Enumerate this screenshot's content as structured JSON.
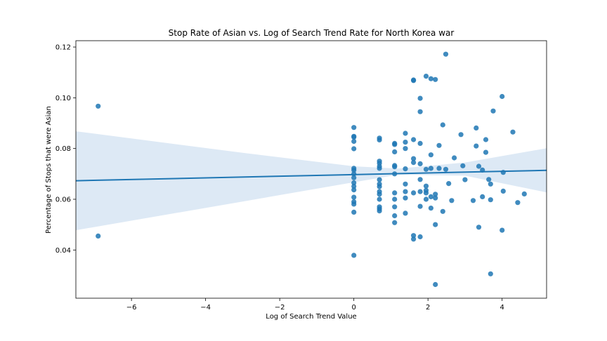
{
  "chart_data": {
    "type": "scatter",
    "title": "Stop Rate of Asian vs. Log of Search Trend Rate for North Korea war",
    "xlabel": "Log of Search Trend Value",
    "ylabel": "Percentage of Stops that were Asian",
    "xlim": [
      -7.5,
      5.2
    ],
    "ylim": [
      0.021,
      0.1225
    ],
    "xticks": [
      -6,
      -4,
      -2,
      0,
      2,
      4
    ],
    "xtick_labels": [
      "−6",
      "−4",
      "−2",
      "0",
      "2",
      "4"
    ],
    "yticks": [
      0.04,
      0.06,
      0.08,
      0.1,
      0.12
    ],
    "ytick_labels": [
      "0.04",
      "0.06",
      "0.08",
      "0.10",
      "0.12"
    ],
    "grid": false,
    "colors": {
      "points": "#1f77b4",
      "line": "#1f77b4",
      "band": "#c6dbef"
    },
    "regression": {
      "x": [
        -7.5,
        5.2
      ],
      "y": [
        0.0673,
        0.0714
      ],
      "ci_band": {
        "x": [
          -7.5,
          -3.0,
          0.0,
          1.2,
          3.0,
          5.2
        ],
        "upper": [
          0.0868,
          0.0783,
          0.073,
          0.0721,
          0.0745,
          0.0801
        ],
        "lower": [
          0.0478,
          0.0591,
          0.0667,
          0.0697,
          0.0693,
          0.0627
        ]
      }
    },
    "points": [
      {
        "x": -6.9,
        "y": 0.0967
      },
      {
        "x": -6.9,
        "y": 0.0455
      },
      {
        "x": 0.0,
        "y": 0.0883
      },
      {
        "x": 0.0,
        "y": 0.0848
      },
      {
        "x": 0.0,
        "y": 0.0845
      },
      {
        "x": 0.0,
        "y": 0.0828
      },
      {
        "x": 0.0,
        "y": 0.0799
      },
      {
        "x": 0.0,
        "y": 0.0722
      },
      {
        "x": 0.0,
        "y": 0.0715
      },
      {
        "x": 0.0,
        "y": 0.07
      },
      {
        "x": 0.0,
        "y": 0.0685
      },
      {
        "x": 0.0,
        "y": 0.0665
      },
      {
        "x": 0.0,
        "y": 0.0651
      },
      {
        "x": 0.0,
        "y": 0.0637
      },
      {
        "x": 0.0,
        "y": 0.0608
      },
      {
        "x": 0.0,
        "y": 0.059
      },
      {
        "x": 0.0,
        "y": 0.0581
      },
      {
        "x": 0.0,
        "y": 0.0549
      },
      {
        "x": 0.0,
        "y": 0.0379
      },
      {
        "x": 0.69,
        "y": 0.0841
      },
      {
        "x": 0.69,
        "y": 0.0834
      },
      {
        "x": 0.69,
        "y": 0.075
      },
      {
        "x": 0.69,
        "y": 0.0742
      },
      {
        "x": 0.69,
        "y": 0.073
      },
      {
        "x": 0.69,
        "y": 0.0722
      },
      {
        "x": 0.69,
        "y": 0.0677
      },
      {
        "x": 0.69,
        "y": 0.066
      },
      {
        "x": 0.69,
        "y": 0.065
      },
      {
        "x": 0.69,
        "y": 0.063
      },
      {
        "x": 0.69,
        "y": 0.062
      },
      {
        "x": 0.69,
        "y": 0.06
      },
      {
        "x": 0.69,
        "y": 0.057
      },
      {
        "x": 0.69,
        "y": 0.0562
      },
      {
        "x": 0.69,
        "y": 0.0554
      },
      {
        "x": 1.1,
        "y": 0.082
      },
      {
        "x": 1.1,
        "y": 0.0816
      },
      {
        "x": 1.1,
        "y": 0.0787
      },
      {
        "x": 1.1,
        "y": 0.0733
      },
      {
        "x": 1.1,
        "y": 0.0728
      },
      {
        "x": 1.1,
        "y": 0.07
      },
      {
        "x": 1.1,
        "y": 0.0625
      },
      {
        "x": 1.1,
        "y": 0.06
      },
      {
        "x": 1.1,
        "y": 0.057
      },
      {
        "x": 1.1,
        "y": 0.0535
      },
      {
        "x": 1.1,
        "y": 0.0508
      },
      {
        "x": 1.39,
        "y": 0.086
      },
      {
        "x": 1.39,
        "y": 0.0825
      },
      {
        "x": 1.39,
        "y": 0.08
      },
      {
        "x": 1.39,
        "y": 0.072
      },
      {
        "x": 1.39,
        "y": 0.066
      },
      {
        "x": 1.39,
        "y": 0.063
      },
      {
        "x": 1.39,
        "y": 0.0605
      },
      {
        "x": 1.39,
        "y": 0.0545
      },
      {
        "x": 1.61,
        "y": 0.107
      },
      {
        "x": 1.61,
        "y": 0.1068
      },
      {
        "x": 1.61,
        "y": 0.0835
      },
      {
        "x": 1.61,
        "y": 0.076
      },
      {
        "x": 1.61,
        "y": 0.0745
      },
      {
        "x": 1.61,
        "y": 0.0625
      },
      {
        "x": 1.61,
        "y": 0.0457
      },
      {
        "x": 1.61,
        "y": 0.0443
      },
      {
        "x": 1.79,
        "y": 0.0998
      },
      {
        "x": 1.79,
        "y": 0.0945
      },
      {
        "x": 1.79,
        "y": 0.082
      },
      {
        "x": 1.79,
        "y": 0.074
      },
      {
        "x": 1.79,
        "y": 0.0678
      },
      {
        "x": 1.79,
        "y": 0.063
      },
      {
        "x": 1.79,
        "y": 0.0572
      },
      {
        "x": 1.79,
        "y": 0.0452
      },
      {
        "x": 1.95,
        "y": 0.1085
      },
      {
        "x": 1.95,
        "y": 0.0718
      },
      {
        "x": 1.95,
        "y": 0.0652
      },
      {
        "x": 1.95,
        "y": 0.0635
      },
      {
        "x": 1.95,
        "y": 0.0625
      },
      {
        "x": 1.95,
        "y": 0.06
      },
      {
        "x": 2.08,
        "y": 0.1075
      },
      {
        "x": 2.08,
        "y": 0.0775
      },
      {
        "x": 2.08,
        "y": 0.0722
      },
      {
        "x": 2.08,
        "y": 0.061
      },
      {
        "x": 2.08,
        "y": 0.0565
      },
      {
        "x": 2.2,
        "y": 0.1072
      },
      {
        "x": 2.2,
        "y": 0.062
      },
      {
        "x": 2.2,
        "y": 0.0605
      },
      {
        "x": 2.2,
        "y": 0.05
      },
      {
        "x": 2.2,
        "y": 0.0264
      },
      {
        "x": 2.3,
        "y": 0.0812
      },
      {
        "x": 2.3,
        "y": 0.0722
      },
      {
        "x": 2.4,
        "y": 0.0893
      },
      {
        "x": 2.4,
        "y": 0.0552
      },
      {
        "x": 2.48,
        "y": 0.1172
      },
      {
        "x": 2.48,
        "y": 0.0718
      },
      {
        "x": 2.56,
        "y": 0.0662
      },
      {
        "x": 2.64,
        "y": 0.0595
      },
      {
        "x": 2.71,
        "y": 0.0763
      },
      {
        "x": 2.89,
        "y": 0.0855
      },
      {
        "x": 2.94,
        "y": 0.0732
      },
      {
        "x": 3.0,
        "y": 0.0677
      },
      {
        "x": 3.22,
        "y": 0.0595
      },
      {
        "x": 3.3,
        "y": 0.0881
      },
      {
        "x": 3.3,
        "y": 0.081
      },
      {
        "x": 3.37,
        "y": 0.073
      },
      {
        "x": 3.37,
        "y": 0.049
      },
      {
        "x": 3.47,
        "y": 0.0715
      },
      {
        "x": 3.47,
        "y": 0.061
      },
      {
        "x": 3.56,
        "y": 0.0835
      },
      {
        "x": 3.56,
        "y": 0.0785
      },
      {
        "x": 3.64,
        "y": 0.0678
      },
      {
        "x": 3.69,
        "y": 0.066
      },
      {
        "x": 3.69,
        "y": 0.0598
      },
      {
        "x": 3.69,
        "y": 0.0306
      },
      {
        "x": 3.76,
        "y": 0.0948
      },
      {
        "x": 4.0,
        "y": 0.1005
      },
      {
        "x": 4.0,
        "y": 0.0478
      },
      {
        "x": 4.03,
        "y": 0.0706
      },
      {
        "x": 4.03,
        "y": 0.0632
      },
      {
        "x": 4.29,
        "y": 0.0865
      },
      {
        "x": 4.42,
        "y": 0.0587
      },
      {
        "x": 4.6,
        "y": 0.0621
      }
    ]
  }
}
